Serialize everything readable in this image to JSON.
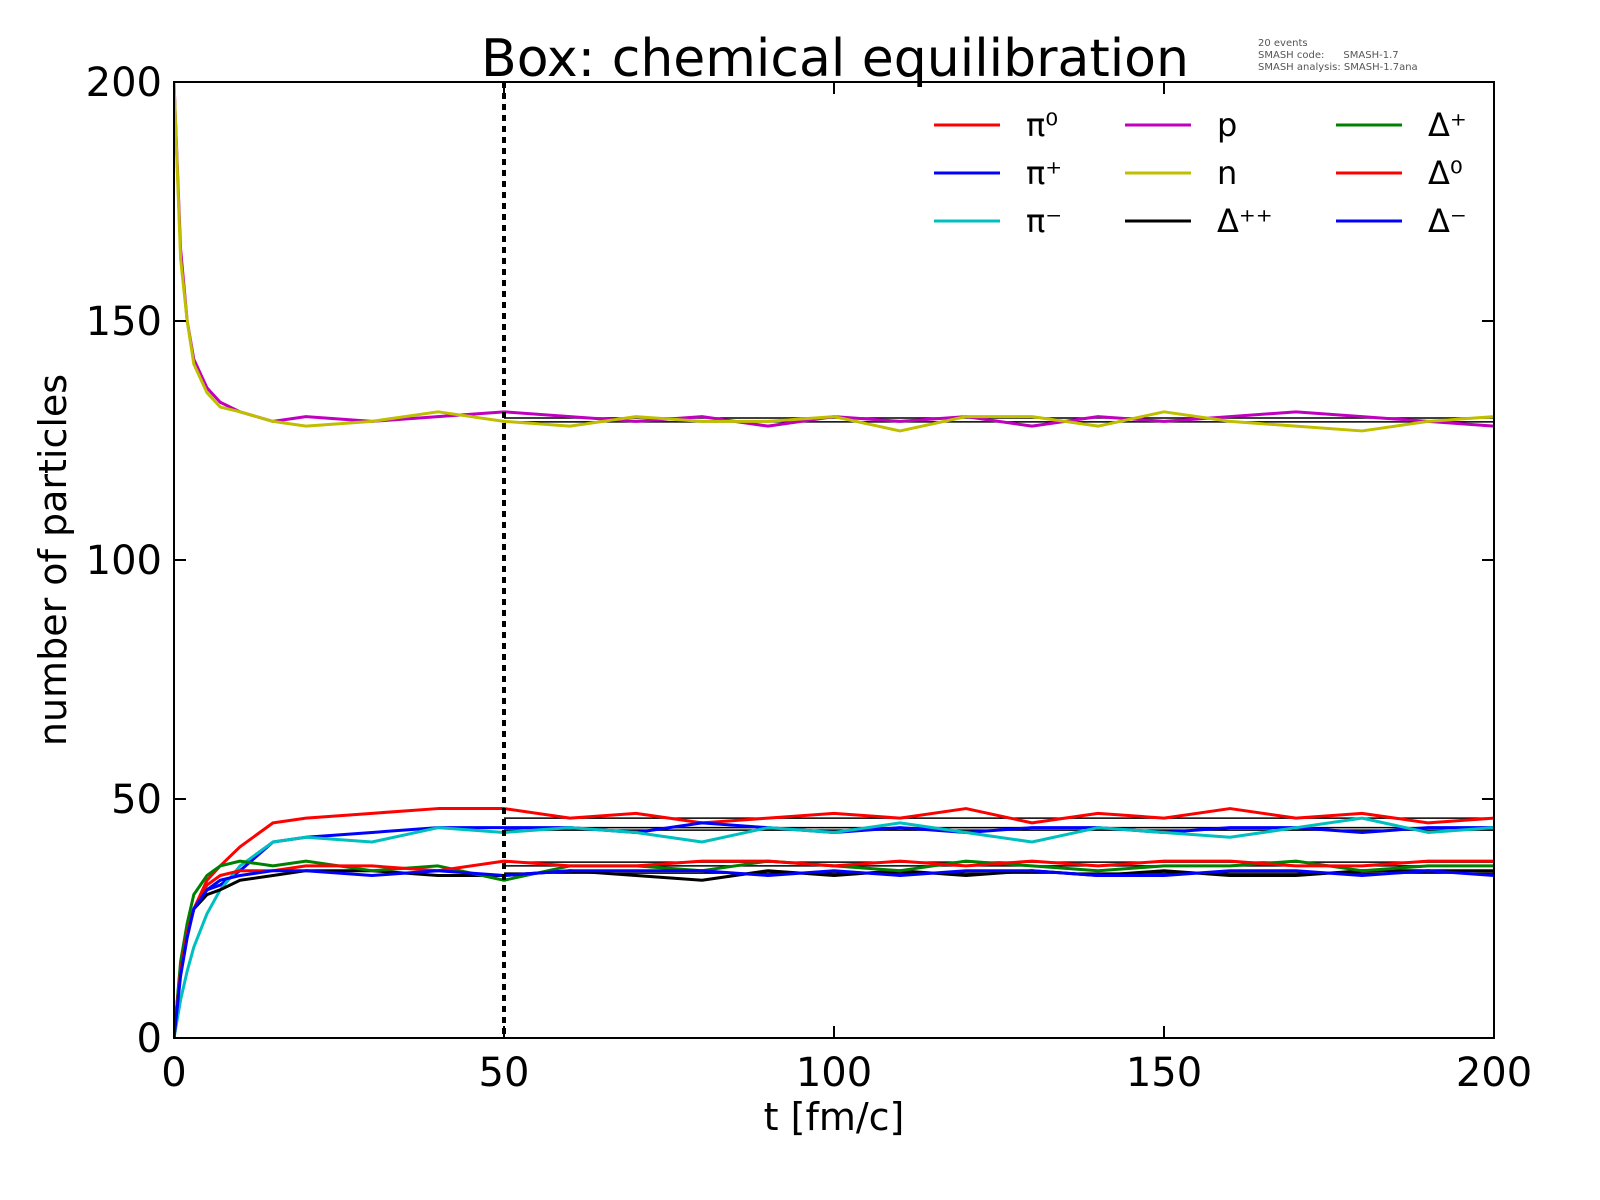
{
  "chart_data": {
    "type": "line",
    "title": "Box: chemical equilibration",
    "annotation": [
      "20 events",
      "SMASH code:      SMASH-1.7",
      "SMASH analysis: SMASH-1.7ana"
    ],
    "xlabel": "t [fm/c]",
    "ylabel": "number of particles",
    "xlim": [
      0,
      200
    ],
    "ylim": [
      0,
      200
    ],
    "xticks": [
      0,
      50,
      100,
      150,
      200
    ],
    "yticks": [
      0,
      50,
      100,
      150,
      200
    ],
    "grid": false,
    "legend_position": "top-right",
    "vertical_marker": 50,
    "equilibrium_lines": {
      "from": 50,
      "to": 200,
      "values": [
        129.7,
        128.9,
        46,
        44,
        43.5,
        36.8,
        36,
        34.5
      ]
    },
    "x": [
      0,
      1,
      2,
      3,
      5,
      7,
      10,
      15,
      20,
      30,
      40,
      50,
      60,
      70,
      80,
      90,
      100,
      110,
      120,
      130,
      140,
      150,
      160,
      170,
      180,
      190,
      200
    ],
    "series": [
      {
        "name": "π⁰",
        "color": "#ff0000",
        "values": [
          0,
          15,
          22,
          27,
          33,
          36,
          40,
          45,
          46,
          47,
          48,
          48,
          46,
          47,
          45,
          46,
          47,
          46,
          48,
          45,
          47,
          46,
          48,
          46,
          47,
          45,
          46
        ]
      },
      {
        "name": "π⁺",
        "color": "#0000ff",
        "values": [
          0,
          15,
          22,
          27,
          31,
          32,
          35,
          41,
          42,
          43,
          44,
          44,
          44,
          43,
          45,
          44,
          43,
          44,
          43,
          44,
          44,
          43,
          44,
          44,
          43,
          44,
          44
        ]
      },
      {
        "name": "π⁻",
        "color": "#00bfbf",
        "values": [
          0,
          8,
          14,
          19,
          26,
          31,
          36,
          41,
          42,
          41,
          44,
          43,
          44,
          43,
          41,
          44,
          43,
          45,
          43,
          41,
          44,
          43,
          42,
          44,
          46,
          43,
          44
        ]
      },
      {
        "name": "p",
        "color": "#bf00bf",
        "values": [
          200,
          165,
          150,
          142,
          136,
          133,
          131,
          129,
          130,
          129,
          130,
          131,
          130,
          129,
          130,
          128,
          130,
          129,
          130,
          128,
          130,
          129,
          130,
          131,
          130,
          129,
          128
        ]
      },
      {
        "name": "n",
        "color": "#bfbf00",
        "values": [
          200,
          163,
          150,
          141,
          135,
          132,
          131,
          129,
          128,
          129,
          131,
          129,
          128,
          130,
          129,
          129,
          130,
          127,
          130,
          130,
          128,
          131,
          129,
          128,
          127,
          129,
          130
        ]
      },
      {
        "name": "Δ⁺⁺",
        "color": "#000000",
        "values": [
          0,
          15,
          22,
          27,
          30,
          31,
          33,
          34,
          35,
          35,
          34,
          34,
          35,
          34,
          33,
          35,
          34,
          35,
          34,
          35,
          34,
          35,
          34,
          34,
          35,
          35,
          35
        ]
      },
      {
        "name": "Δ⁺",
        "color": "#008000",
        "values": [
          0,
          16,
          24,
          30,
          34,
          36,
          37,
          36,
          37,
          35,
          36,
          33,
          36,
          36,
          35,
          37,
          36,
          35,
          37,
          36,
          35,
          36,
          36,
          37,
          35,
          36,
          36
        ]
      },
      {
        "name": "Δ⁰",
        "color": "#ff0000",
        "values": [
          0,
          14,
          22,
          27,
          32,
          34,
          35,
          35,
          36,
          36,
          35,
          37,
          36,
          36,
          37,
          37,
          36,
          37,
          36,
          37,
          36,
          37,
          37,
          36,
          36,
          37,
          37
        ]
      },
      {
        "name": "Δ⁻",
        "color": "#0000ff",
        "values": [
          0,
          13,
          21,
          27,
          31,
          33,
          34,
          35,
          35,
          34,
          35,
          34,
          35,
          35,
          35,
          34,
          35,
          34,
          35,
          35,
          34,
          34,
          35,
          35,
          34,
          35,
          34
        ]
      }
    ]
  }
}
